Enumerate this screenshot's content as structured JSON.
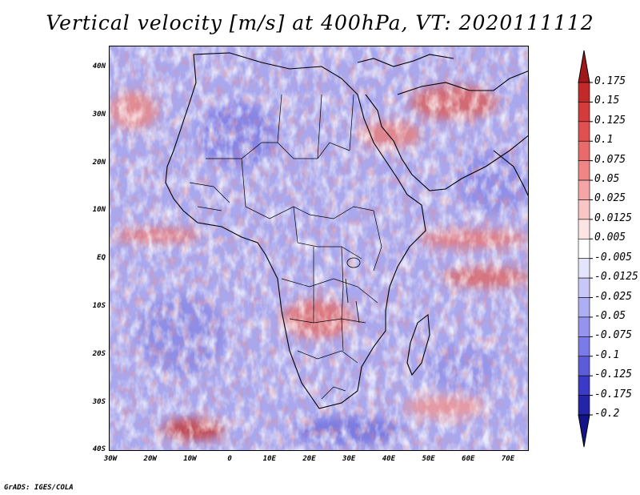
{
  "title": "Vertical velocity [m/s] at 400hPa, VT: 2020111112",
  "footer": "GrADS: IGES/COLA",
  "lat_labels": [
    "40N",
    "30N",
    "20N",
    "10N",
    "EQ",
    "10S",
    "20S",
    "30S",
    "40S"
  ],
  "lon_labels": [
    "30W",
    "20W",
    "10W",
    "0",
    "10E",
    "20E",
    "30E",
    "40E",
    "50E",
    "60E",
    "70E"
  ],
  "colorbar": {
    "levels": [
      "0.175",
      "0.15",
      "0.125",
      "0.1",
      "0.075",
      "0.05",
      "0.025",
      "0.0125",
      "0.005",
      "-0.005",
      "-0.0125",
      "-0.025",
      "-0.05",
      "-0.075",
      "-0.1",
      "-0.125",
      "-0.175",
      "-0.2"
    ],
    "colors": [
      "#a01818",
      "#c22a2a",
      "#d43b3b",
      "#e05050",
      "#e86a6a",
      "#ef8585",
      "#f5a5a5",
      "#fac5c5",
      "#fde4e4",
      "#ffffff",
      "#e4e4fd",
      "#c8c8f8",
      "#aeaef4",
      "#9494ee",
      "#7a7ae8",
      "#5c5cd8",
      "#3a3ac6",
      "#2424a8",
      "#14148a"
    ]
  },
  "map": {
    "lon_range": [
      -30,
      75
    ],
    "lat_range": [
      -40,
      45
    ],
    "ocean_base_color": "#a9a8ee",
    "land_base_color": "#c9c3ef"
  }
}
